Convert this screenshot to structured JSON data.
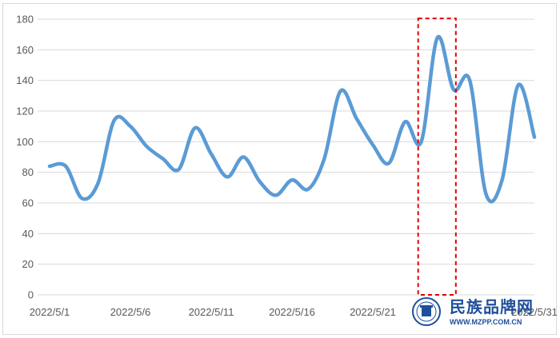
{
  "chart_data": {
    "type": "line",
    "x": [
      "2022/5/1",
      "2022/5/2",
      "2022/5/3",
      "2022/5/4",
      "2022/5/5",
      "2022/5/6",
      "2022/5/7",
      "2022/5/8",
      "2022/5/9",
      "2022/5/10",
      "2022/5/11",
      "2022/5/12",
      "2022/5/13",
      "2022/5/14",
      "2022/5/15",
      "2022/5/16",
      "2022/5/17",
      "2022/5/18",
      "2022/5/19",
      "2022/5/20",
      "2022/5/21",
      "2022/5/22",
      "2022/5/23",
      "2022/5/24",
      "2022/5/25",
      "2022/5/26",
      "2022/5/27",
      "2022/5/28",
      "2022/5/29",
      "2022/5/30",
      "2022/5/31"
    ],
    "series": [
      {
        "values": [
          84,
          84,
          63,
          73,
          114,
          110,
          97,
          89,
          82,
          109,
          92,
          77,
          90,
          74,
          65,
          75,
          69,
          89,
          133,
          115,
          98,
          86,
          113,
          100,
          168,
          134,
          140,
          66,
          75,
          137,
          103
        ]
      }
    ],
    "xticks": [
      "2022/5/1",
      "2022/5/6",
      "2022/5/11",
      "2022/5/16",
      "2022/5/21",
      "2022/5/31"
    ],
    "yticks": [
      0,
      20,
      40,
      60,
      80,
      100,
      120,
      140,
      160,
      180
    ],
    "ylim": [
      0,
      180
    ],
    "title": "",
    "xlabel": "",
    "ylabel": "",
    "grid": true,
    "legend": "none",
    "highlight": {
      "from": "2022/5/24",
      "to": "2022/5/26",
      "style": "red dashed rectangle"
    },
    "line_color": "#5b9bd5",
    "gridline_color": "#d9d9d9",
    "highlight_color": "#e00000"
  },
  "watermark": {
    "name": "民族品牌网",
    "url": "WWW.MZPP.COM.CN",
    "color": "#1f4f9a"
  }
}
